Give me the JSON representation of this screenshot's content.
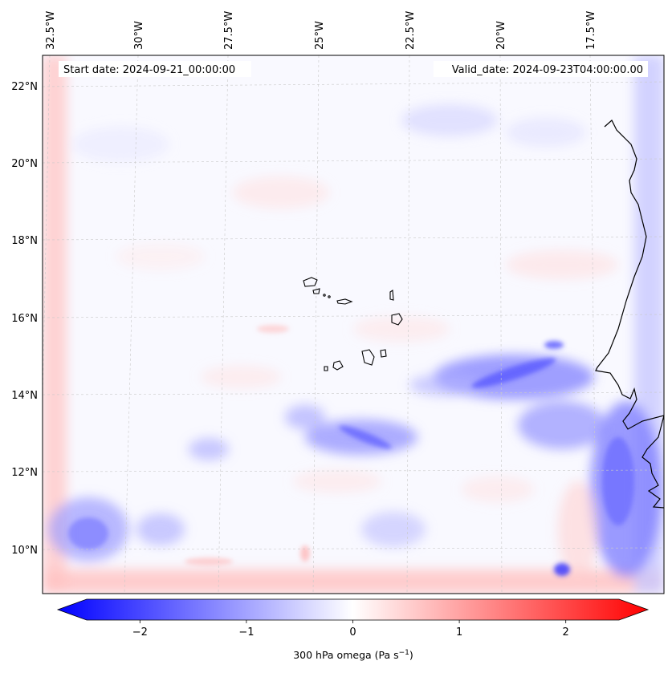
{
  "map": {
    "start_date": "Start date: 2024-09-21_00:00:00",
    "valid_date": "Valid_date: 2024-09-23T04:00:00.00",
    "lon_labels": [
      "32.5°W",
      "30°W",
      "27.5°W",
      "25°W",
      "22.5°W",
      "20°W",
      "17.5°W"
    ],
    "lat_labels": [
      "22°N",
      "20°N",
      "18°N",
      "16°N",
      "14°N",
      "12°N",
      "10°N"
    ],
    "gridlines": true,
    "features": [
      "coastline-west-africa",
      "cape-verde-islands"
    ]
  },
  "colorbar": {
    "ticks": [
      {
        "value": -2,
        "label": "−2"
      },
      {
        "value": -1,
        "label": "−1"
      },
      {
        "value": 0,
        "label": "0"
      },
      {
        "value": 1,
        "label": "1"
      },
      {
        "value": 2,
        "label": "2"
      }
    ],
    "range": [
      -2.7,
      2.7
    ],
    "label": "300 hPa omega (Pa s",
    "label_sup": "−1",
    "label_close": ")",
    "colormap": "bwr",
    "colors": {
      "negative": "#0000ff",
      "zero": "#ffffff",
      "positive": "#ff0000"
    }
  }
}
